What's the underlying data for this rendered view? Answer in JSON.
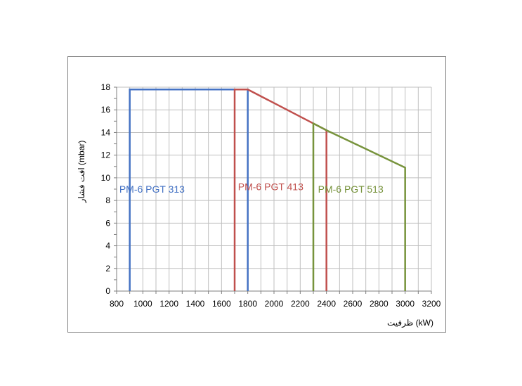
{
  "chart_data": {
    "type": "line",
    "xlabel": "ظرفیت (kW)",
    "ylabel": "افت فشار (mbar)",
    "xlim": [
      800,
      3200
    ],
    "ylim": [
      0,
      18
    ],
    "x_ticks": [
      800,
      1000,
      1200,
      1400,
      1600,
      1800,
      2000,
      2200,
      2400,
      2600,
      2800,
      3000,
      3200
    ],
    "y_ticks": [
      0,
      2,
      4,
      6,
      8,
      10,
      12,
      14,
      16,
      18
    ],
    "grid": true,
    "series": [
      {
        "name": "PM-6 PGT 313",
        "color": "#4472c4",
        "points": [
          [
            900,
            0
          ],
          [
            900,
            17.8
          ],
          [
            1800,
            17.8
          ],
          [
            1800,
            0
          ]
        ]
      },
      {
        "name": "PM-6 PGT 413",
        "color": "#c0504d",
        "points": [
          [
            1700,
            0
          ],
          [
            1700,
            17.8
          ],
          [
            1800,
            17.8
          ],
          [
            2300,
            14.8
          ],
          [
            2400,
            14.2
          ],
          [
            2400,
            0
          ]
        ]
      },
      {
        "name": "PM-6 PGT 513",
        "color": "#77933c",
        "points": [
          [
            2300,
            0
          ],
          [
            2300,
            14.8
          ],
          [
            2400,
            14.2
          ],
          [
            3000,
            10.9
          ],
          [
            3000,
            0
          ]
        ]
      }
    ]
  }
}
